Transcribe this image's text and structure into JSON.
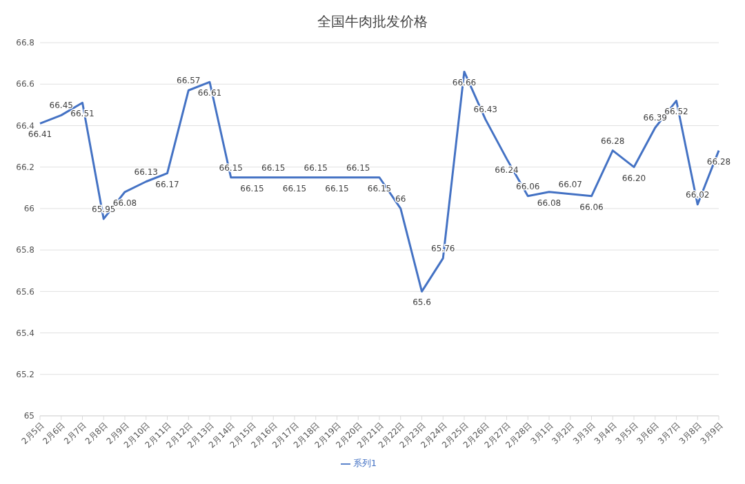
{
  "chart_data": {
    "type": "line",
    "title": "全国牛肉批发价格",
    "categories": [
      "2月5日",
      "2月6日",
      "2月7日",
      "2月8日",
      "2月9日",
      "2月10日",
      "2月11日",
      "2月12日",
      "2月13日",
      "2月14日",
      "2月15日",
      "2月16日",
      "2月17日",
      "2月18日",
      "2月19日",
      "2月20日",
      "2月21日",
      "2月22日",
      "2月23日",
      "2月24日",
      "2月25日",
      "2月26日",
      "2月27日",
      "2月28日",
      "3月1日",
      "3月2日",
      "3月3日",
      "3月4日",
      "3月5日",
      "3月6日",
      "3月7日",
      "3月8日",
      "3月9日"
    ],
    "series": [
      {
        "name": "系列1",
        "color": "#4472c4",
        "values": [
          66.41,
          66.45,
          66.51,
          65.95,
          66.08,
          66.13,
          66.17,
          66.57,
          66.61,
          66.15,
          66.15,
          66.15,
          66.15,
          66.15,
          66.15,
          66.15,
          66.15,
          66,
          65.6,
          65.76,
          66.66,
          66.43,
          66.24,
          66.06,
          66.08,
          66.07,
          66.06,
          66.28,
          66.2,
          66.39,
          66.52,
          66.02,
          66.28
        ],
        "value_labels": [
          "66.41",
          "66.45",
          "66.51",
          "65.95",
          "66.08",
          "66.13",
          "66.17",
          "66.57",
          "66.61",
          "66.15",
          "66.15",
          "66.15",
          "66.15",
          "66.15",
          "66.15",
          "66.15",
          "66.15",
          "66",
          "65.6",
          "65.76",
          "66.66",
          "66.43",
          "66.24",
          "66.06",
          "66.08",
          "66.07",
          "66.06",
          "66.28",
          "66.20",
          "66.39",
          "66.52",
          "66.02",
          "66.28"
        ]
      }
    ],
    "ylim": [
      65,
      66.8
    ],
    "yticks": [
      65,
      65.2,
      65.4,
      65.6,
      65.8,
      66,
      66.2,
      66.4,
      66.6,
      66.8
    ],
    "grid": "y",
    "legend": "bottom",
    "marker": "none",
    "line_style": "solid"
  }
}
